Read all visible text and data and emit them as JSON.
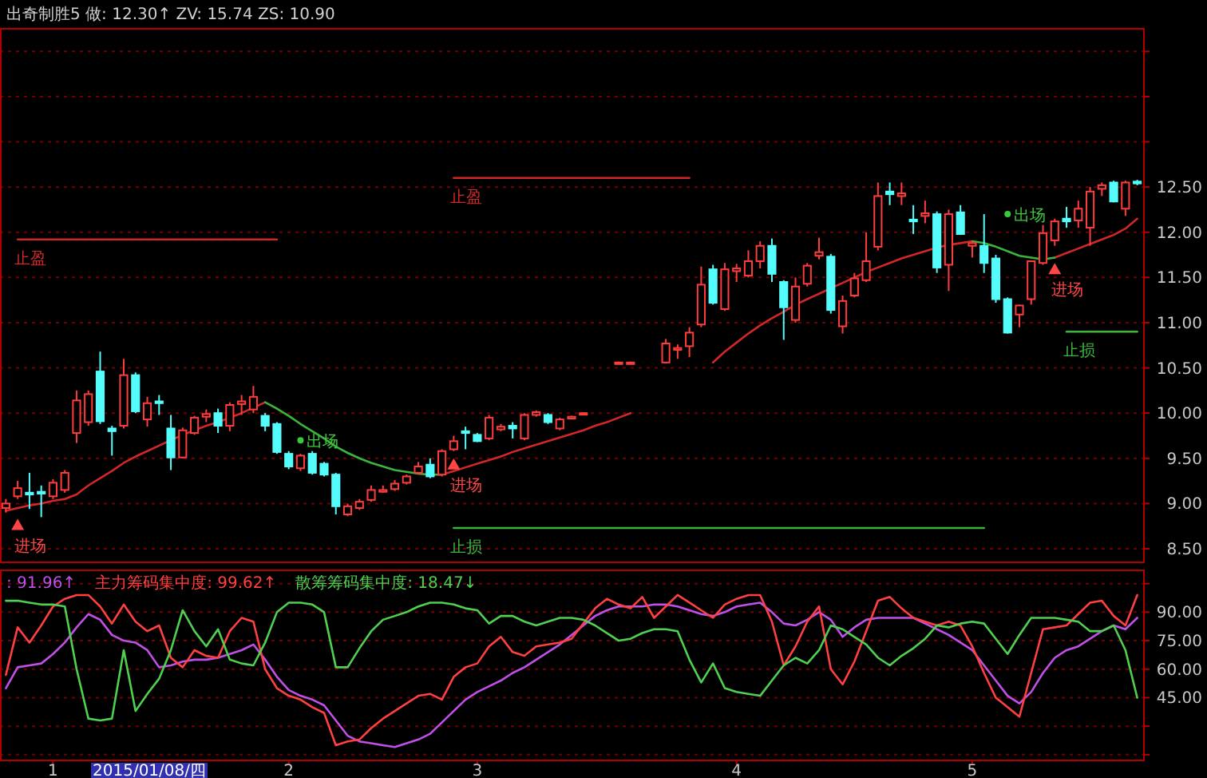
{
  "chart_data": [
    {
      "type": "candlestick",
      "title": "出奇制胜5  做: 12.30↑  ZV: 15.74  ZS: 10.90",
      "categories": [
        null,
        null,
        null,
        null,
        "1",
        null,
        null,
        null,
        null,
        null,
        null,
        null,
        null,
        null,
        null,
        null,
        null,
        null,
        null,
        null,
        null,
        null,
        null,
        null,
        "2",
        null,
        null,
        null,
        null,
        null,
        null,
        null,
        null,
        null,
        null,
        null,
        null,
        null,
        null,
        null,
        "3",
        null,
        null,
        null,
        null,
        null,
        null,
        null,
        null,
        null,
        null,
        null,
        null,
        null,
        null,
        null,
        null,
        null,
        null,
        null,
        null,
        null,
        "4",
        null,
        null,
        null,
        null,
        null,
        null,
        null,
        null,
        null,
        null,
        null,
        null,
        null,
        null,
        null,
        null,
        null,
        null,
        null,
        "5",
        null,
        null,
        null,
        null,
        null,
        null,
        null,
        null,
        null,
        null,
        null,
        null,
        null,
        null
      ],
      "ohlc": [
        [
          8.95,
          9.05,
          8.9,
          9.0
        ],
        [
          9.08,
          9.25,
          9.05,
          9.17
        ],
        [
          9.12,
          9.34,
          8.94,
          9.1
        ],
        [
          9.13,
          9.2,
          8.85,
          9.11
        ],
        [
          9.08,
          9.27,
          9.05,
          9.23
        ],
        [
          9.15,
          9.37,
          9.12,
          9.34
        ],
        [
          9.78,
          10.25,
          9.67,
          10.14
        ],
        [
          9.9,
          10.25,
          9.86,
          10.21
        ],
        [
          10.46,
          10.68,
          9.88,
          9.91
        ],
        [
          9.83,
          9.86,
          9.53,
          9.8
        ],
        [
          9.86,
          10.6,
          9.83,
          10.42
        ],
        [
          10.42,
          10.45,
          10.0,
          10.02
        ],
        [
          9.93,
          10.18,
          9.85,
          10.11
        ],
        [
          10.13,
          10.2,
          9.98,
          10.11
        ],
        [
          9.83,
          9.98,
          9.37,
          9.51
        ],
        [
          9.51,
          9.84,
          9.5,
          9.81
        ],
        [
          9.78,
          9.97,
          9.76,
          9.95
        ],
        [
          9.96,
          10.04,
          9.9,
          9.99
        ],
        [
          10.0,
          10.05,
          9.78,
          9.86
        ],
        [
          9.86,
          10.12,
          9.8,
          10.09
        ],
        [
          10.1,
          10.2,
          9.98,
          10.13
        ],
        [
          10.04,
          10.3,
          10.0,
          10.18
        ],
        [
          9.97,
          10.0,
          9.8,
          9.86
        ],
        [
          9.88,
          9.9,
          9.55,
          9.57
        ],
        [
          9.55,
          9.58,
          9.38,
          9.41
        ],
        [
          9.39,
          9.55,
          9.36,
          9.53
        ],
        [
          9.55,
          9.58,
          9.32,
          9.34
        ],
        [
          9.44,
          9.46,
          9.3,
          9.32
        ],
        [
          9.32,
          9.34,
          8.88,
          8.97
        ],
        [
          8.88,
          9.0,
          8.86,
          8.97
        ],
        [
          8.95,
          9.05,
          8.93,
          9.02
        ],
        [
          9.04,
          9.2,
          9.02,
          9.15
        ],
        [
          9.13,
          9.2,
          9.12,
          9.15
        ],
        [
          9.16,
          9.26,
          9.14,
          9.22
        ],
        [
          9.23,
          9.32,
          9.21,
          9.3
        ],
        [
          9.34,
          9.46,
          9.32,
          9.41
        ],
        [
          9.43,
          9.5,
          9.28,
          9.3
        ],
        [
          9.32,
          9.6,
          9.3,
          9.58
        ],
        [
          9.6,
          9.75,
          9.58,
          9.69
        ],
        [
          9.8,
          9.85,
          9.6,
          9.78
        ],
        [
          9.76,
          9.78,
          9.68,
          9.69
        ],
        [
          9.72,
          9.98,
          9.7,
          9.95
        ],
        [
          9.82,
          9.88,
          9.8,
          9.85
        ],
        [
          9.86,
          9.9,
          9.72,
          9.83
        ],
        [
          9.72,
          10.0,
          9.7,
          9.98
        ],
        [
          9.98,
          10.03,
          9.96,
          10.01
        ],
        [
          9.98,
          10.0,
          9.88,
          9.9
        ],
        [
          9.83,
          9.95,
          9.81,
          9.93
        ],
        [
          9.94,
          9.97,
          9.93,
          9.96
        ],
        [
          9.99,
          10.01,
          9.98,
          10.0
        ],
        null,
        null,
        [
          10.56,
          10.57,
          10.55,
          10.56
        ],
        [
          10.56,
          10.57,
          10.55,
          10.56
        ],
        null,
        null,
        [
          10.56,
          10.82,
          10.55,
          10.77
        ],
        [
          10.7,
          10.76,
          10.6,
          10.72
        ],
        [
          10.74,
          10.95,
          10.62,
          10.89
        ],
        [
          10.98,
          11.62,
          10.95,
          11.42
        ],
        [
          11.59,
          11.64,
          11.2,
          11.22
        ],
        [
          11.15,
          11.66,
          11.13,
          11.59
        ],
        [
          11.57,
          11.65,
          11.45,
          11.6
        ],
        [
          11.52,
          11.8,
          11.5,
          11.68
        ],
        [
          11.68,
          11.9,
          11.6,
          11.85
        ],
        [
          11.85,
          11.93,
          11.45,
          11.54
        ],
        [
          11.45,
          11.47,
          10.81,
          11.17
        ],
        [
          11.03,
          11.5,
          11.0,
          11.4
        ],
        [
          11.43,
          11.66,
          11.4,
          11.63
        ],
        [
          11.74,
          11.94,
          11.7,
          11.78
        ],
        [
          11.73,
          11.76,
          11.1,
          11.14
        ],
        [
          10.96,
          11.3,
          10.88,
          11.24
        ],
        [
          11.3,
          11.55,
          11.28,
          11.49
        ],
        [
          11.47,
          12.0,
          11.45,
          11.68
        ],
        [
          11.84,
          12.55,
          11.8,
          12.4
        ],
        [
          12.45,
          12.55,
          12.3,
          12.42
        ],
        [
          12.4,
          12.55,
          12.3,
          12.43
        ],
        [
          12.14,
          12.3,
          11.98,
          12.12
        ],
        [
          12.18,
          12.35,
          12.1,
          12.21
        ],
        [
          12.2,
          12.23,
          11.55,
          11.61
        ],
        [
          11.64,
          12.25,
          11.35,
          12.2
        ],
        [
          12.22,
          12.3,
          11.97,
          11.98
        ],
        [
          11.85,
          11.9,
          11.72,
          11.88
        ],
        [
          11.85,
          12.2,
          11.55,
          11.66
        ],
        [
          11.71,
          11.75,
          11.22,
          11.26
        ],
        [
          11.26,
          11.28,
          10.88,
          10.89
        ],
        [
          11.09,
          11.2,
          10.95,
          11.19
        ],
        [
          11.26,
          11.68,
          11.2,
          11.68
        ],
        [
          11.66,
          12.08,
          11.64,
          11.99
        ],
        [
          11.91,
          12.15,
          11.85,
          12.12
        ],
        [
          12.15,
          12.28,
          12.05,
          12.12
        ],
        [
          12.13,
          12.35,
          12.05,
          12.26
        ],
        [
          12.05,
          12.5,
          11.85,
          12.45
        ],
        [
          12.48,
          12.55,
          12.4,
          12.52
        ],
        [
          12.55,
          12.57,
          12.33,
          12.34
        ],
        [
          12.26,
          12.57,
          12.18,
          12.55
        ],
        [
          12.56,
          12.58,
          12.52,
          12.54
        ]
      ],
      "colors": [
        "#ff3c3c",
        "#ff3c3c",
        "#54fcfc",
        "#54fcfc",
        "#ff3c3c",
        "#ff3c3c",
        "#ff3c3c",
        "#ff3c3c",
        "#54fcfc",
        "#54fcfc",
        "#ff3c3c",
        "#54fcfc",
        "#ff3c3c",
        "#54fcfc",
        "#54fcfc",
        "#ff3c3c",
        "#ff3c3c",
        "#ff3c3c",
        "#54fcfc",
        "#ff3c3c",
        "#ff3c3c",
        "#ff3c3c",
        "#54fcfc",
        "#54fcfc",
        "#54fcfc",
        "#ff3c3c",
        "#54fcfc",
        "#54fcfc",
        "#54fcfc",
        "#ff3c3c",
        "#ff3c3c",
        "#ff3c3c",
        "#ff3c3c",
        "#ff3c3c",
        "#ff3c3c",
        "#ff3c3c",
        "#54fcfc",
        "#ff3c3c",
        "#ff3c3c",
        "#54fcfc",
        "#54fcfc",
        "#ff3c3c",
        "#ff3c3c",
        "#54fcfc",
        "#ff3c3c",
        "#ff3c3c",
        "#54fcfc",
        "#ff3c3c",
        "#ff3c3c",
        "#ff3c3c",
        null,
        null,
        "#ff3c3c",
        "#ff3c3c",
        null,
        null,
        "#ff3c3c",
        "#ff3c3c",
        "#ff3c3c",
        "#ff3c3c",
        "#54fcfc",
        "#ff3c3c",
        "#ff3c3c",
        "#ff3c3c",
        "#ff3c3c",
        "#54fcfc",
        "#54fcfc",
        "#ff3c3c",
        "#ff3c3c",
        "#ff3c3c",
        "#54fcfc",
        "#ff3c3c",
        "#ff3c3c",
        "#ff3c3c",
        "#ff3c3c",
        "#54fcfc",
        "#ff3c3c",
        "#54fcfc",
        "#ff3c3c",
        "#54fcfc",
        "#ff3c3c",
        "#54fcfc",
        "#ff3c3c",
        "#54fcfc",
        "#54fcfc",
        "#54fcfc",
        "#ff3c3c",
        "#ff3c3c",
        "#ff3c3c",
        "#ff3c3c",
        "#54fcfc",
        "#ff3c3c",
        "#ff3c3c",
        "#ff3c3c",
        "#54fcfc",
        "#ff3c3c",
        "#54fcfc"
      ],
      "series": [
        {
          "type": "line",
          "color": "#d02828",
          "values": [
            8.92,
            8.95,
            8.98,
            9.0,
            9.03,
            9.05,
            9.1,
            9.2,
            9.28,
            9.36,
            9.45,
            9.52,
            9.58,
            9.64,
            9.7,
            9.76,
            9.81,
            9.86,
            9.9,
            9.95,
            10.0,
            10.06,
            10.12,
            null,
            null,
            null,
            null,
            null,
            null,
            null,
            null,
            null,
            null,
            null,
            null,
            null,
            null,
            9.32,
            9.36,
            9.4,
            9.44,
            9.48,
            9.52,
            9.57,
            9.61,
            9.65,
            9.69,
            9.73,
            9.77,
            9.81,
            9.86,
            9.9,
            9.95,
            10.0,
            null,
            null,
            null,
            null,
            null,
            null,
            10.56,
            10.68,
            10.78,
            10.88,
            10.97,
            11.05,
            11.12,
            11.2,
            11.26,
            11.32,
            11.38,
            11.44,
            11.5,
            11.56,
            11.61,
            11.66,
            11.71,
            11.75,
            11.79,
            11.83,
            11.86,
            11.88,
            11.9,
            null,
            null,
            null,
            null,
            null,
            null,
            11.72,
            11.77,
            11.82,
            11.87,
            11.92,
            11.97,
            12.04,
            12.15
          ]
        },
        {
          "type": "line",
          "color": "#3cb43c",
          "values": [
            null,
            null,
            null,
            null,
            null,
            null,
            null,
            null,
            null,
            null,
            null,
            null,
            null,
            null,
            null,
            null,
            null,
            null,
            null,
            null,
            null,
            null,
            10.12,
            10.05,
            9.97,
            9.88,
            9.8,
            9.72,
            9.63,
            9.56,
            9.5,
            9.45,
            9.41,
            9.37,
            9.35,
            9.33,
            9.32,
            9.32,
            null,
            null,
            null,
            null,
            null,
            null,
            null,
            null,
            null,
            null,
            null,
            null,
            null,
            null,
            null,
            null,
            null,
            null,
            null,
            null,
            null,
            null,
            null,
            null,
            null,
            null,
            null,
            null,
            null,
            null,
            null,
            null,
            null,
            null,
            null,
            null,
            null,
            null,
            null,
            null,
            null,
            null,
            null,
            null,
            11.9,
            11.88,
            11.84,
            11.79,
            11.74,
            11.72,
            11.7,
            11.72,
            null,
            null,
            null,
            null,
            null,
            null,
            null
          ]
        },
        {
          "type": "line",
          "name": "止盈",
          "color": "#d02828",
          "values": [
            null,
            11.92,
            11.92,
            11.92,
            11.92,
            11.92,
            11.92,
            11.92,
            11.92,
            11.92,
            11.92,
            11.92,
            11.92,
            11.92,
            11.92,
            11.92,
            11.92,
            11.92,
            11.92,
            11.92,
            11.92,
            11.92,
            11.92,
            11.92,
            null,
            null,
            null,
            null,
            null,
            null,
            null,
            null,
            null,
            null,
            null,
            null,
            null,
            null,
            null,
            null,
            null,
            null,
            null,
            null,
            null,
            null,
            null,
            null,
            null,
            null,
            null,
            null,
            null,
            null,
            null,
            null,
            null,
            null,
            null,
            null,
            null,
            null,
            null,
            null,
            null,
            null,
            null,
            null,
            null,
            null,
            null,
            null,
            null,
            null,
            null,
            null,
            null,
            null,
            null,
            null,
            null,
            null,
            null,
            null,
            null,
            null,
            null,
            null,
            null,
            null,
            null,
            null,
            null,
            null,
            null,
            null,
            null
          ]
        },
        {
          "type": "line",
          "name": "止盈",
          "color": "#d02828",
          "values": [
            null,
            null,
            null,
            null,
            null,
            null,
            null,
            null,
            null,
            null,
            null,
            null,
            null,
            null,
            null,
            null,
            null,
            null,
            null,
            null,
            null,
            null,
            null,
            null,
            null,
            null,
            null,
            null,
            null,
            null,
            null,
            null,
            null,
            null,
            null,
            null,
            null,
            null,
            12.6,
            12.6,
            12.6,
            12.6,
            12.6,
            12.6,
            12.6,
            12.6,
            12.6,
            12.6,
            12.6,
            12.6,
            12.6,
            12.6,
            12.6,
            12.6,
            12.6,
            12.6,
            12.6,
            12.6,
            12.6,
            null,
            null,
            null,
            null,
            null,
            null,
            null,
            null,
            null,
            null,
            null,
            null,
            null,
            null,
            null,
            null,
            null,
            null,
            null,
            null,
            null,
            null,
            null,
            null,
            null,
            null,
            null,
            null,
            null,
            null,
            null,
            null,
            null,
            null,
            null,
            null,
            null,
            null
          ]
        },
        {
          "type": "line",
          "name": "止损",
          "color": "#3cb43c",
          "values": [
            null,
            null,
            null,
            null,
            null,
            null,
            null,
            null,
            null,
            null,
            null,
            null,
            null,
            null,
            null,
            null,
            null,
            null,
            null,
            null,
            null,
            null,
            null,
            null,
            null,
            null,
            null,
            null,
            null,
            null,
            null,
            null,
            null,
            null,
            null,
            null,
            null,
            null,
            8.73,
            8.73,
            8.73,
            8.73,
            8.73,
            8.73,
            8.73,
            8.73,
            8.73,
            8.73,
            8.73,
            8.73,
            8.73,
            8.73,
            8.73,
            8.73,
            8.73,
            8.73,
            8.73,
            8.73,
            8.73,
            8.73,
            8.73,
            8.73,
            8.73,
            8.73,
            8.73,
            8.73,
            8.73,
            8.73,
            8.73,
            8.73,
            8.73,
            8.73,
            8.73,
            8.73,
            8.73,
            8.73,
            8.73,
            8.73,
            8.73,
            8.73,
            8.73,
            8.73,
            8.73,
            8.73,
            null,
            null,
            null,
            null,
            null,
            null,
            null,
            null,
            null,
            null,
            null,
            null,
            null
          ]
        },
        {
          "type": "line",
          "name": "止损",
          "color": "#3cb43c",
          "values": [
            null,
            null,
            null,
            null,
            null,
            null,
            null,
            null,
            null,
            null,
            null,
            null,
            null,
            null,
            null,
            null,
            null,
            null,
            null,
            null,
            null,
            null,
            null,
            null,
            null,
            null,
            null,
            null,
            null,
            null,
            null,
            null,
            null,
            null,
            null,
            null,
            null,
            null,
            null,
            null,
            null,
            null,
            null,
            null,
            null,
            null,
            null,
            null,
            null,
            null,
            null,
            null,
            null,
            null,
            null,
            null,
            null,
            null,
            null,
            null,
            null,
            null,
            null,
            null,
            null,
            null,
            null,
            null,
            null,
            null,
            null,
            null,
            null,
            null,
            null,
            null,
            null,
            null,
            null,
            null,
            null,
            null,
            null,
            null,
            null,
            null,
            null,
            null,
            null,
            null,
            10.9,
            10.9,
            10.9,
            10.9,
            10.9,
            10.9,
            10.9
          ]
        },
        {
          "type": "scatter",
          "name": "进场",
          "color": "#ff4646",
          "marker": "triangle",
          "values": [
            null,
            8.76,
            null,
            null,
            null,
            null,
            null,
            null,
            null,
            null,
            null,
            null,
            null,
            null,
            null,
            null,
            null,
            null,
            null,
            null,
            null,
            null,
            null,
            null,
            null,
            null,
            null,
            null,
            null,
            null,
            null,
            null,
            null,
            null,
            null,
            null,
            null,
            null,
            9.43,
            null,
            null,
            null,
            null,
            null,
            null,
            null,
            null,
            null,
            null,
            null,
            null,
            null,
            null,
            null,
            null,
            null,
            null,
            null,
            null,
            null,
            null,
            null,
            null,
            null,
            null,
            null,
            null,
            null,
            null,
            null,
            null,
            null,
            null,
            null,
            null,
            null,
            null,
            null,
            null,
            null,
            null,
            null,
            null,
            null,
            null,
            null,
            null,
            null,
            null,
            11.59,
            null,
            null,
            null,
            null,
            null,
            null,
            null
          ]
        },
        {
          "type": "scatter",
          "name": "出场",
          "color": "#3cc83c",
          "marker": "circle",
          "values": [
            null,
            null,
            null,
            null,
            null,
            null,
            null,
            null,
            null,
            null,
            null,
            null,
            null,
            null,
            null,
            null,
            null,
            null,
            null,
            null,
            null,
            null,
            null,
            null,
            null,
            9.7,
            null,
            null,
            null,
            null,
            null,
            null,
            null,
            null,
            null,
            null,
            null,
            null,
            null,
            null,
            null,
            null,
            null,
            null,
            null,
            null,
            null,
            null,
            null,
            null,
            null,
            null,
            null,
            null,
            null,
            null,
            null,
            null,
            null,
            null,
            null,
            null,
            null,
            null,
            null,
            null,
            null,
            null,
            null,
            null,
            null,
            null,
            null,
            null,
            null,
            null,
            null,
            null,
            null,
            null,
            null,
            null,
            null,
            null,
            null,
            12.2,
            null,
            null,
            null,
            null,
            null,
            null,
            null,
            null,
            null,
            null,
            null
          ]
        }
      ],
      "ylim": [
        8.35,
        14.25
      ],
      "yticks": [
        {
          "value": 8.5,
          "label": "8.50"
        },
        {
          "value": 9,
          "label": "9.00"
        },
        {
          "value": 9.5,
          "label": "9.50"
        },
        {
          "value": 10,
          "label": "10.00"
        },
        {
          "value": 10.5,
          "label": "10.50"
        },
        {
          "value": 11,
          "label": "11.00"
        },
        {
          "value": 11.5,
          "label": "11.50"
        },
        {
          "value": 12,
          "label": "12.00"
        },
        {
          "value": 12.5,
          "label": "12.50"
        },
        {
          "value": 13,
          "label": null
        },
        {
          "value": 13.5,
          "label": null
        },
        {
          "value": 14,
          "label": null
        }
      ],
      "grid": "y",
      "tick_labels": "y"
    },
    {
      "type": "line",
      "categories": [
        null,
        null,
        null,
        null,
        "1",
        null,
        null,
        null,
        null,
        null,
        null,
        null,
        null,
        null,
        null,
        null,
        null,
        null,
        null,
        null,
        null,
        null,
        null,
        null,
        "2",
        null,
        null,
        null,
        null,
        null,
        null,
        null,
        null,
        null,
        null,
        null,
        null,
        null,
        null,
        null,
        "3",
        null,
        null,
        null,
        null,
        null,
        null,
        null,
        null,
        null,
        null,
        null,
        null,
        null,
        null,
        null,
        null,
        null,
        null,
        null,
        null,
        null,
        "4",
        null,
        null,
        null,
        null,
        null,
        null,
        null,
        null,
        null,
        null,
        null,
        null,
        null,
        null,
        null,
        null,
        null,
        null,
        null,
        "5",
        null,
        null,
        null,
        null,
        null,
        null,
        null,
        null,
        null,
        null,
        null,
        null,
        null,
        null
      ],
      "series": [
        {
          "name": ": 91.96↑",
          "color": "#c050e8",
          "values": [
            50,
            61,
            62,
            63,
            68,
            74,
            82,
            89,
            86,
            78,
            75,
            74,
            70,
            61,
            62,
            64,
            65,
            65,
            66,
            68,
            70,
            73,
            65,
            56,
            49,
            46,
            44,
            41,
            33,
            25,
            22,
            21,
            20,
            19,
            21,
            23,
            26,
            32,
            38,
            44,
            48,
            51,
            54,
            58,
            61,
            65,
            69,
            73,
            78,
            83,
            88,
            91,
            93,
            93,
            93,
            94,
            94,
            93,
            91,
            89,
            88,
            90,
            93,
            94,
            95,
            90,
            84,
            83,
            86,
            90,
            86,
            77,
            82,
            86,
            87,
            87,
            87,
            87,
            84,
            81,
            78,
            74,
            70,
            62,
            54,
            46,
            42,
            48,
            58,
            66,
            70,
            72,
            76,
            80,
            83,
            81,
            87
          ]
        },
        {
          "name": "主力筹码集中度: 99.62↑",
          "color": "#ff4040",
          "values": [
            57,
            82,
            74,
            83,
            93,
            97,
            99,
            99,
            93,
            84,
            94,
            85,
            80,
            83,
            66,
            61,
            70,
            67,
            66,
            80,
            87,
            85,
            60,
            50,
            46,
            44,
            40,
            37,
            20,
            22,
            23,
            29,
            34,
            38,
            42,
            46,
            47,
            44,
            56,
            61,
            63,
            72,
            77,
            69,
            67,
            72,
            73,
            74,
            76,
            84,
            92,
            97,
            94,
            92,
            98,
            87,
            93,
            99,
            95,
            91,
            87,
            94,
            97,
            99,
            99,
            85,
            62,
            72,
            85,
            93,
            60,
            52,
            64,
            80,
            96,
            98,
            92,
            87,
            85,
            83,
            85,
            83,
            72,
            58,
            45,
            40,
            35,
            58,
            81,
            82,
            83,
            89,
            95,
            96,
            88,
            83,
            99
          ]
        },
        {
          "name": "散筹筹码集中度: 18.47↓",
          "color": "#50d050",
          "values": [
            96,
            96,
            95,
            94,
            94,
            93,
            60,
            34,
            33,
            34,
            70,
            38,
            47,
            55,
            70,
            91,
            80,
            72,
            81,
            65,
            63,
            62,
            74,
            90,
            95,
            95,
            94,
            90,
            61,
            61,
            71,
            80,
            86,
            88,
            90,
            93,
            95,
            95,
            94,
            92,
            91,
            84,
            88,
            88,
            85,
            83,
            85,
            87,
            87,
            86,
            83,
            79,
            75,
            76,
            79,
            81,
            81,
            80,
            65,
            53,
            63,
            50,
            48,
            47,
            46,
            54,
            62,
            66,
            63,
            70,
            83,
            81,
            77,
            73,
            66,
            62,
            67,
            71,
            76,
            83,
            82,
            84,
            85,
            84,
            76,
            68,
            78,
            87,
            87,
            87,
            86,
            85,
            80,
            80,
            83,
            70,
            45
          ]
        }
      ],
      "ylim": [
        12,
        112
      ],
      "yticks": [
        {
          "value": 15,
          "label": null
        },
        {
          "value": 30,
          "label": null
        },
        {
          "value": 45,
          "label": "45.00"
        },
        {
          "value": 60,
          "label": "60.00"
        },
        {
          "value": 75,
          "label": "75.00"
        },
        {
          "value": 90,
          "label": "90.00"
        },
        {
          "value": 105,
          "label": null
        }
      ],
      "grid": "y",
      "legend": "top left",
      "annotations": [
        "2015/01/08/四"
      ]
    }
  ]
}
